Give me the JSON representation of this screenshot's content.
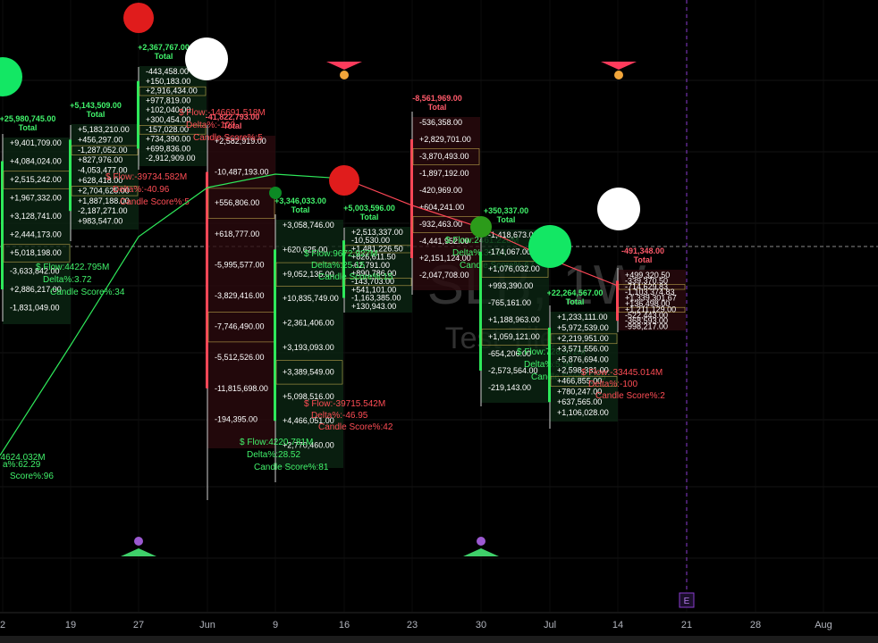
{
  "watermark": {
    "symbol": "SLB, 1W",
    "sub": "Test Tile"
  },
  "chart_data": {
    "type": "candlestick_footprint",
    "timeframe": "1W",
    "x_axis": {
      "ticks": [
        "2",
        "19",
        "27",
        "Jun",
        "9",
        "16",
        "23",
        "30",
        "Jul",
        "14",
        "21",
        "28",
        "Aug"
      ]
    },
    "event_marker": {
      "label": "E",
      "at": "21"
    },
    "candles": [
      {
        "x": "2",
        "direction": "up",
        "total": "+25,980,745.00",
        "total_label": "Total",
        "levels": [
          "+9,401,709.00",
          "+4,084,024.00",
          "+2,515,242.00",
          "+1,967,332.00",
          "+3,128,741.00",
          "+2,444,173.00",
          "+5,018,198.00",
          "-3,633,842.00",
          "+2,886,217.00",
          "-1,831,049.00"
        ],
        "stats": [
          "84624.032M",
          "a%:62.29",
          "Score%:96"
        ]
      },
      {
        "x": "19",
        "direction": "up",
        "total": "+5,143,509.00",
        "total_label": "Total",
        "levels": [
          "+5,183,210.00",
          "+456,297.00",
          "-1,287,052.00",
          "+827,976.00",
          "-4,053,477.00",
          "+628,418.00",
          "+2,704,625.00",
          "+1,887,188.00",
          "-2,187,271.00",
          "+983,547.00"
        ],
        "stats": [
          "$ Flow:4422.795M",
          "Delta%:3.72",
          "Candle Score%:34"
        ]
      },
      {
        "x": "27",
        "direction": "up",
        "total": "+2,367,767.00",
        "total_label": "Total",
        "levels": [
          "-443,458.00",
          "+150,183.00",
          "+2,916,434.00",
          "+977,819.00",
          "+102,040.00",
          "+300,454.00",
          "-157,028.00",
          "+734,390.00",
          "+699,836.00",
          "-2,912,909.00"
        ],
        "stats": [
          "$ Flow:-39734.582M",
          "Delta%:-40.96",
          "Candle Score%:5"
        ]
      },
      {
        "x": "Jun",
        "direction": "down",
        "total": "-41,822,793.00",
        "total_label": "Total",
        "levels": [
          "+2,582,919.00",
          "-10,487,193.00",
          "+556,806.00",
          "+618,777.00",
          "-5,995,577.00",
          "-3,829,416.00",
          "-7,746,490.00",
          "-5,512,526.00",
          "-11,815,698.00",
          "-194,395.00"
        ],
        "stats": [
          "$ Flow:-146691.518M",
          "Delta%:-100",
          "Candle Score%:5"
        ]
      },
      {
        "x": "9",
        "direction": "up",
        "total": "+3,346,033.00",
        "total_label": "Total",
        "levels": [
          "+3,058,746.00",
          "+620,625.00",
          "+9,052,135.00",
          "+10,835,749.00",
          "+2,361,406.00",
          "+3,193,093.00",
          "+3,389,549.00",
          "+5,098,516.00",
          "+4,466,051.00",
          "+2,770,460.00"
        ],
        "stats": [
          "$ Flow:4220.781M",
          "Delta%:28.52",
          "Candle Score%:81"
        ]
      },
      {
        "x": "16",
        "direction": "up",
        "total": "+5,003,596.00",
        "total_label": "Total",
        "levels": [
          "+2,513,337.00",
          "-10,530.00",
          "+1,481,226.50",
          "+826,611.50",
          "-62,791.00",
          "+890,786.00",
          "-143,703.00",
          "+541,101.00",
          "-1,163,385.00",
          "+130,943.00"
        ],
        "stats": [
          "$ Flow:-39715.542M",
          "Delta%:-46.95",
          "Candle Score%:42",
          "$ Flow:9672.927M",
          "Delta%:25.15",
          "Candle Score%:15"
        ]
      },
      {
        "x": "23",
        "direction": "down",
        "total": "-8,561,969.00",
        "total_label": "Total",
        "levels": [
          "-536,358.00",
          "+2,829,701.00",
          "-3,870,493.00",
          "-1,897,192.00",
          "-420,969.00",
          "+604,241.00",
          "-932,463.00",
          "-4,441,952.00",
          "+2,151,124.00",
          "-2,047,708.00"
        ],
        "stats": [
          "$ Flow:2461.228M",
          "Delta%:30.64",
          "Candle Score%:67"
        ]
      },
      {
        "x": "30",
        "direction": "up",
        "total": "+350,337.00",
        "total_label": "Total",
        "levels": [
          "-1,418,673.00",
          "-174,067.00",
          "+1,076,032.00",
          "+993,390.00",
          "-765,161.00",
          "+1,188,963.00",
          "+1,059,121.00",
          "-654,206.00",
          "-2,573,564.00",
          "-219,143.00"
        ],
        "stats": [
          "$ Flow:728.572M",
          "Delta%:5.56",
          "Candle Score%:58"
        ]
      },
      {
        "x": "Jul",
        "direction": "up",
        "total": "+22,264,567.00",
        "total_label": "Total",
        "levels": [
          "+1,233,111.00",
          "+5,972,539.00",
          "+2,219,951.00",
          "+3,571,556.00",
          "+5,876,694.00",
          "+2,598,331.00",
          "+466,855.00",
          "+780,247.00",
          "+637,565.00",
          "+1,106,028.00"
        ],
        "stats": [
          "$ Flow:-33445.014M",
          "Delta%:-100",
          "Candle Score%:2"
        ]
      },
      {
        "x": "14",
        "direction": "down",
        "total": "-491,348.00",
        "total_label": "Total",
        "levels": [
          "+499,320.50",
          "-339,370.50",
          "-714,629.83",
          "-1,103,374.83",
          "+1,339,301.67",
          "+136,498.00",
          "+1,211,129.00",
          "-522,443.00",
          "-368,593.00",
          "-998,217.00"
        ],
        "stats": []
      }
    ],
    "colors": {
      "bull": "#2ee85a",
      "bear": "#ff4757",
      "bull_dot": "#13e764",
      "bear_dot": "#e01c1c",
      "white_dot": "#ffffff",
      "bull_cell": "#0b2613",
      "bear_cell": "#2b0a0e",
      "total_bull": "#41f26b",
      "total_bear": "#ff5a6a"
    }
  }
}
